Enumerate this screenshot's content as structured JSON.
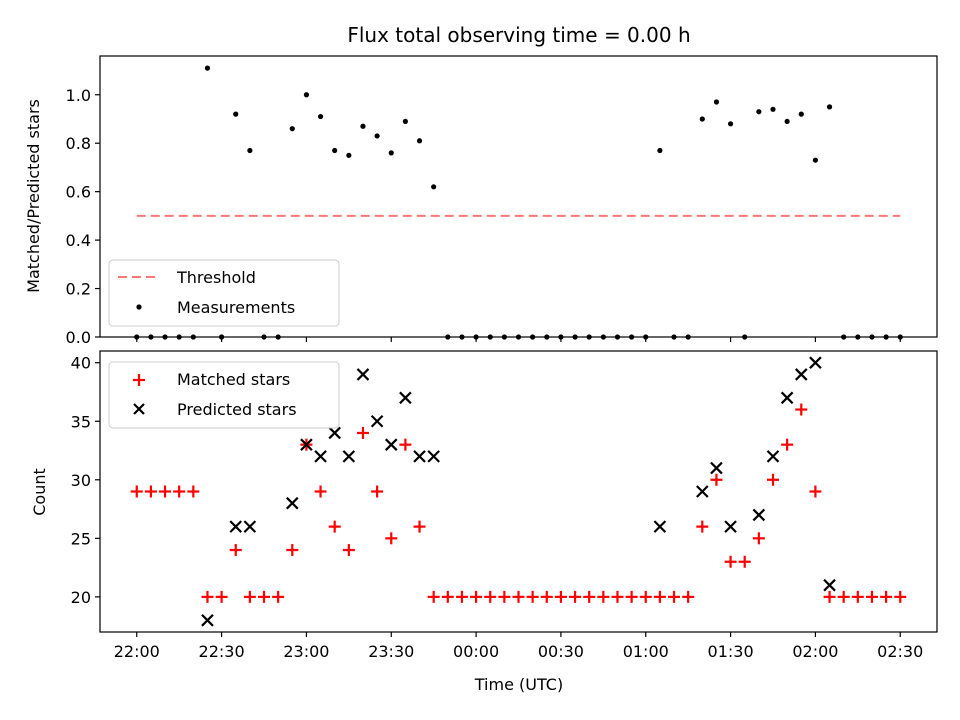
{
  "chart_data": [
    {
      "type": "scatter",
      "title": "Flux total observing time = 0.00 h",
      "xlabel": "",
      "ylabel": "Matched/Predicted stars",
      "ylim": [
        0,
        1.16
      ],
      "yticks": [
        0.0,
        0.2,
        0.4,
        0.6,
        0.8,
        1.0
      ],
      "ytick_labels": [
        "0.0",
        "0.2",
        "0.4",
        "0.6",
        "0.8",
        "1.0"
      ],
      "legend_position": "lower-left",
      "threshold": {
        "name": "Threshold",
        "value": 0.5,
        "x_start": 0,
        "x_end": 270,
        "color": "#ff7777",
        "style": "dashed"
      },
      "series": [
        {
          "name": "Measurements",
          "color": "#000000",
          "marker": "dot",
          "points": [
            [
              0,
              0
            ],
            [
              5,
              0
            ],
            [
              10,
              0
            ],
            [
              15,
              0
            ],
            [
              20,
              0
            ],
            [
              25,
              1.11
            ],
            [
              30,
              0
            ],
            [
              35,
              0.92
            ],
            [
              40,
              0.77
            ],
            [
              45,
              0
            ],
            [
              50,
              0
            ],
            [
              55,
              0.86
            ],
            [
              60,
              1.0
            ],
            [
              65,
              0.91
            ],
            [
              70,
              0.77
            ],
            [
              75,
              0.75
            ],
            [
              80,
              0.87
            ],
            [
              85,
              0.83
            ],
            [
              90,
              0.76
            ],
            [
              95,
              0.89
            ],
            [
              100,
              0.81
            ],
            [
              105,
              0.62
            ],
            [
              110,
              0
            ],
            [
              115,
              0
            ],
            [
              120,
              0
            ],
            [
              125,
              0
            ],
            [
              130,
              0
            ],
            [
              135,
              0
            ],
            [
              140,
              0
            ],
            [
              145,
              0
            ],
            [
              150,
              0
            ],
            [
              155,
              0
            ],
            [
              160,
              0
            ],
            [
              165,
              0
            ],
            [
              170,
              0
            ],
            [
              175,
              0
            ],
            [
              180,
              0
            ],
            [
              185,
              0.77
            ],
            [
              190,
              0
            ],
            [
              195,
              0
            ],
            [
              200,
              0.9
            ],
            [
              205,
              0.97
            ],
            [
              210,
              0.88
            ],
            [
              215,
              0
            ],
            [
              220,
              0.93
            ],
            [
              225,
              0.94
            ],
            [
              230,
              0.89
            ],
            [
              235,
              0.92
            ],
            [
              240,
              0.73
            ],
            [
              245,
              0.95
            ],
            [
              250,
              0
            ],
            [
              255,
              0
            ],
            [
              260,
              0
            ],
            [
              265,
              0
            ],
            [
              270,
              0
            ]
          ]
        }
      ]
    },
    {
      "type": "scatter",
      "title": "",
      "xlabel": "Time (UTC)",
      "ylabel": "Count",
      "xlim": [
        -13,
        283
      ],
      "ylim": [
        17,
        41
      ],
      "yticks": [
        20,
        25,
        30,
        35,
        40
      ],
      "ytick_labels": [
        "20",
        "25",
        "30",
        "35",
        "40"
      ],
      "xticks": [
        0,
        30,
        60,
        90,
        120,
        150,
        180,
        210,
        240,
        270
      ],
      "xtick_labels": [
        "22:00",
        "22:30",
        "23:00",
        "23:30",
        "00:00",
        "00:30",
        "01:00",
        "01:30",
        "02:00",
        "02:30"
      ],
      "legend_position": "upper-left",
      "series": [
        {
          "name": "Matched stars",
          "color": "#ff0000",
          "marker": "plus",
          "points": [
            [
              0,
              29
            ],
            [
              5,
              29
            ],
            [
              10,
              29
            ],
            [
              15,
              29
            ],
            [
              20,
              29
            ],
            [
              25,
              20
            ],
            [
              30,
              20
            ],
            [
              35,
              24
            ],
            [
              40,
              20
            ],
            [
              45,
              20
            ],
            [
              50,
              20
            ],
            [
              55,
              24
            ],
            [
              60,
              33
            ],
            [
              65,
              29
            ],
            [
              70,
              26
            ],
            [
              75,
              24
            ],
            [
              80,
              34
            ],
            [
              85,
              29
            ],
            [
              90,
              25
            ],
            [
              95,
              33
            ],
            [
              100,
              26
            ],
            [
              105,
              20
            ],
            [
              110,
              20
            ],
            [
              115,
              20
            ],
            [
              120,
              20
            ],
            [
              125,
              20
            ],
            [
              130,
              20
            ],
            [
              135,
              20
            ],
            [
              140,
              20
            ],
            [
              145,
              20
            ],
            [
              150,
              20
            ],
            [
              155,
              20
            ],
            [
              160,
              20
            ],
            [
              165,
              20
            ],
            [
              170,
              20
            ],
            [
              175,
              20
            ],
            [
              180,
              20
            ],
            [
              185,
              20
            ],
            [
              190,
              20
            ],
            [
              195,
              20
            ],
            [
              200,
              26
            ],
            [
              205,
              30
            ],
            [
              210,
              23
            ],
            [
              215,
              23
            ],
            [
              220,
              25
            ],
            [
              225,
              30
            ],
            [
              230,
              33
            ],
            [
              235,
              36
            ],
            [
              240,
              29
            ],
            [
              245,
              20
            ],
            [
              250,
              20
            ],
            [
              255,
              20
            ],
            [
              260,
              20
            ],
            [
              265,
              20
            ],
            [
              270,
              20
            ]
          ]
        },
        {
          "name": "Predicted stars",
          "color": "#000000",
          "marker": "cross",
          "points": [
            [
              25,
              18
            ],
            [
              35,
              26
            ],
            [
              40,
              26
            ],
            [
              55,
              28
            ],
            [
              60,
              33
            ],
            [
              65,
              32
            ],
            [
              70,
              34
            ],
            [
              75,
              32
            ],
            [
              80,
              39
            ],
            [
              85,
              35
            ],
            [
              90,
              33
            ],
            [
              95,
              37
            ],
            [
              100,
              32
            ],
            [
              105,
              32
            ],
            [
              185,
              26
            ],
            [
              200,
              29
            ],
            [
              205,
              31
            ],
            [
              210,
              26
            ],
            [
              220,
              27
            ],
            [
              225,
              32
            ],
            [
              230,
              37
            ],
            [
              235,
              39
            ],
            [
              240,
              40
            ],
            [
              245,
              21
            ]
          ]
        }
      ]
    }
  ]
}
